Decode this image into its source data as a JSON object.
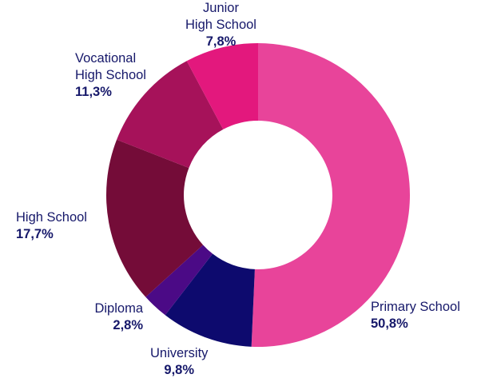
{
  "chart_data": {
    "type": "pie",
    "title": "",
    "slices": [
      {
        "name": "Primary School",
        "value": 50.8,
        "label": "50,8%",
        "color": "#e8449a"
      },
      {
        "name": "University",
        "value": 9.8,
        "label": "9,8%",
        "color": "#0d0a6e"
      },
      {
        "name": "Diploma",
        "value": 2.8,
        "label": "2,8%",
        "color": "#4b0a86"
      },
      {
        "name": "High School",
        "value": 17.7,
        "label": "17,7%",
        "color": "#740c38"
      },
      {
        "name": "Vocational High School",
        "name_lines": [
          "Vocational",
          "High School"
        ],
        "value": 11.3,
        "label": "11,3%",
        "color": "#a6125a"
      },
      {
        "name": "Junior High School",
        "name_lines": [
          "Junior",
          "High School"
        ],
        "value": 7.8,
        "label": "7,8%",
        "color": "#e3187d"
      }
    ]
  }
}
